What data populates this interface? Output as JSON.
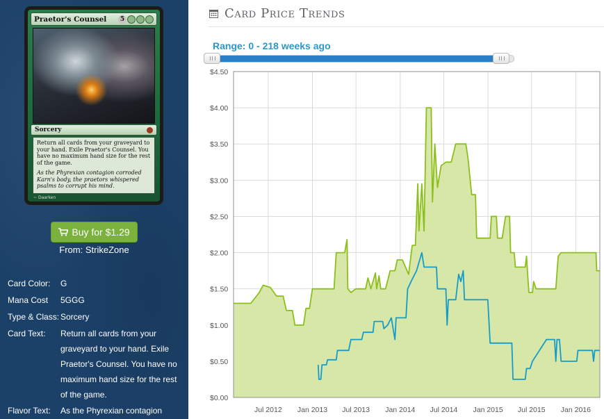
{
  "card": {
    "name": "Praetor's Counsel",
    "mana_cost_number": "5",
    "mana_symbols": [
      "G",
      "G",
      "G"
    ],
    "type_line": "Sorcery",
    "rules_text": "Return all cards from your graveyard to your hand. Exile Praetor's Counsel. You have no maximum hand size for the rest of the game.",
    "flavor_text": "As the Phyrexian contagion corroded Karn's body, the praetors whispered psalms to corrupt his mind.",
    "artist": "Daarken"
  },
  "buy": {
    "label": "Buy for $1.29",
    "from": "From: StrikeZone",
    "color": "#7bb13d"
  },
  "details": [
    {
      "label": "Card Color:",
      "value": "G"
    },
    {
      "label": "Mana Cost",
      "value": "5GGG"
    },
    {
      "label": "Type & Class:",
      "value": "Sorcery"
    },
    {
      "label": "Card Text:",
      "value": "Return all cards from your graveyard to your hand. Exile Praetor's Counsel. You have no maximum hand size for the rest of the game."
    },
    {
      "label": "Flavor Text:",
      "value": "As the Phyrexian contagion"
    }
  ],
  "panel": {
    "title": "Card Price Trends",
    "range_label": "Range: 0 - 218 weeks ago",
    "range_selected_fraction": 0.96
  },
  "colors": {
    "sidebar_bg": "#1c4169",
    "accent_blue": "#2e97c8",
    "series_green": "#8cbf1c",
    "series_green_fill": "#d5e6a3",
    "series_blue": "#169bc9"
  },
  "chart_data": {
    "type": "line",
    "title": "",
    "xlabel": "",
    "ylabel": "",
    "ylim": [
      0,
      4.5
    ],
    "y_ticks": [
      "$0.00",
      "$0.50",
      "$1.00",
      "$1.50",
      "$2.00",
      "$2.50",
      "$3.00",
      "$3.50",
      "$4.00",
      "$4.50"
    ],
    "x_tick_labels": [
      "Jul 2012",
      "Jan 2013",
      "Jul 2013",
      "Jan 2014",
      "Jul 2014",
      "Jan 2015",
      "Jul 2015",
      "Jan 2016"
    ],
    "x_ticks": [
      "2012-07-01",
      "2013-01-01",
      "2013-07-01",
      "2014-01-01",
      "2014-07-01",
      "2015-01-01",
      "2015-07-01",
      "2016-01-01"
    ],
    "xlim": [
      "2012-02-08",
      "2016-04-10"
    ],
    "grid": true,
    "legend": "none",
    "series": [
      {
        "color": "#8cbf1c",
        "fill": true,
        "points": [
          [
            "2012-02-08",
            1.3
          ],
          [
            "2012-04-20",
            1.3
          ],
          [
            "2012-05-25",
            1.45
          ],
          [
            "2012-06-10",
            1.55
          ],
          [
            "2012-07-10",
            1.52
          ],
          [
            "2012-08-05",
            1.4
          ],
          [
            "2012-09-01",
            1.4
          ],
          [
            "2012-09-15",
            1.2
          ],
          [
            "2012-10-10",
            1.2
          ],
          [
            "2012-10-20",
            1.0
          ],
          [
            "2012-11-25",
            1.0
          ],
          [
            "2012-12-05",
            1.23
          ],
          [
            "2012-12-20",
            1.23
          ],
          [
            "2013-01-01",
            1.5
          ],
          [
            "2013-04-01",
            1.5
          ],
          [
            "2013-04-10",
            2.0
          ],
          [
            "2013-05-15",
            2.0
          ],
          [
            "2013-05-25",
            2.18
          ],
          [
            "2013-05-28",
            1.5
          ],
          [
            "2013-06-10",
            1.45
          ],
          [
            "2013-07-01",
            1.5
          ],
          [
            "2013-08-10",
            1.5
          ],
          [
            "2013-08-20",
            1.65
          ],
          [
            "2013-09-01",
            1.5
          ],
          [
            "2013-09-20",
            1.72
          ],
          [
            "2013-09-25",
            1.5
          ],
          [
            "2013-10-05",
            1.68
          ],
          [
            "2013-10-12",
            1.5
          ],
          [
            "2013-11-01",
            1.5
          ],
          [
            "2013-11-20",
            1.75
          ],
          [
            "2013-12-10",
            1.75
          ],
          [
            "2013-12-20",
            1.9
          ],
          [
            "2014-01-10",
            1.9
          ],
          [
            "2014-02-05",
            1.7
          ],
          [
            "2014-02-20",
            2.1
          ],
          [
            "2014-03-05",
            2.1
          ],
          [
            "2014-03-15",
            2.95
          ],
          [
            "2014-03-20",
            2.3
          ],
          [
            "2014-04-01",
            2.95
          ],
          [
            "2014-04-10",
            2.3
          ],
          [
            "2014-04-20",
            4.0
          ],
          [
            "2014-05-10",
            4.0
          ],
          [
            "2014-05-15",
            2.7
          ],
          [
            "2014-05-25",
            3.5
          ],
          [
            "2014-06-05",
            2.9
          ],
          [
            "2014-06-20",
            3.2
          ],
          [
            "2014-07-10",
            3.25
          ],
          [
            "2014-08-01",
            3.25
          ],
          [
            "2014-08-20",
            3.5
          ],
          [
            "2014-10-01",
            3.5
          ],
          [
            "2014-10-10",
            3.3
          ],
          [
            "2014-10-25",
            2.8
          ],
          [
            "2014-11-10",
            2.8
          ],
          [
            "2014-11-15",
            2.2
          ],
          [
            "2015-01-10",
            2.2
          ],
          [
            "2015-01-15",
            2.5
          ],
          [
            "2015-02-05",
            2.5
          ],
          [
            "2015-02-10",
            2.2
          ],
          [
            "2015-03-01",
            2.2
          ],
          [
            "2015-03-15",
            2.5
          ],
          [
            "2015-04-01",
            2.5
          ],
          [
            "2015-04-05",
            2.0
          ],
          [
            "2015-04-20",
            2.0
          ],
          [
            "2015-04-25",
            1.8
          ],
          [
            "2015-06-05",
            1.8
          ],
          [
            "2015-06-10",
            1.95
          ],
          [
            "2015-06-20",
            1.45
          ],
          [
            "2015-07-05",
            1.45
          ],
          [
            "2015-07-10",
            1.6
          ],
          [
            "2015-07-20",
            1.5
          ],
          [
            "2015-10-10",
            1.5
          ],
          [
            "2015-10-20",
            1.95
          ],
          [
            "2015-11-01",
            2.0
          ],
          [
            "2016-03-25",
            2.0
          ],
          [
            "2016-03-28",
            1.75
          ],
          [
            "2016-04-10",
            1.75
          ]
        ]
      },
      {
        "color": "#169bc9",
        "fill": false,
        "points": [
          [
            "2013-01-25",
            0.45
          ],
          [
            "2013-01-28",
            0.25
          ],
          [
            "2013-02-05",
            0.25
          ],
          [
            "2013-02-10",
            0.45
          ],
          [
            "2013-02-28",
            0.45
          ],
          [
            "2013-03-05",
            0.52
          ],
          [
            "2013-04-10",
            0.52
          ],
          [
            "2013-04-15",
            0.65
          ],
          [
            "2013-06-01",
            0.65
          ],
          [
            "2013-06-10",
            0.8
          ],
          [
            "2013-07-25",
            0.8
          ],
          [
            "2013-08-01",
            0.9
          ],
          [
            "2013-09-10",
            0.9
          ],
          [
            "2013-09-15",
            1.05
          ],
          [
            "2013-10-20",
            1.05
          ],
          [
            "2013-10-25",
            0.95
          ],
          [
            "2013-11-10",
            1.0
          ],
          [
            "2013-11-25",
            1.1
          ],
          [
            "2013-12-10",
            0.8
          ],
          [
            "2013-12-15",
            1.1
          ],
          [
            "2014-01-25",
            1.1
          ],
          [
            "2014-02-01",
            1.5
          ],
          [
            "2014-02-15",
            1.6
          ],
          [
            "2014-03-10",
            1.75
          ],
          [
            "2014-04-01",
            2.0
          ],
          [
            "2014-04-10",
            1.8
          ],
          [
            "2014-06-01",
            1.8
          ],
          [
            "2014-06-05",
            1.5
          ],
          [
            "2014-07-10",
            1.5
          ],
          [
            "2014-07-15",
            1.0
          ],
          [
            "2014-07-20",
            1.35
          ],
          [
            "2014-08-20",
            1.35
          ],
          [
            "2014-09-01",
            1.7
          ],
          [
            "2014-09-10",
            1.6
          ],
          [
            "2014-09-20",
            1.75
          ],
          [
            "2014-09-25",
            1.35
          ],
          [
            "2014-12-31",
            1.35
          ],
          [
            "2015-01-10",
            0.75
          ],
          [
            "2015-04-10",
            0.75
          ],
          [
            "2015-04-15",
            0.25
          ],
          [
            "2015-06-05",
            0.25
          ],
          [
            "2015-06-10",
            0.4
          ],
          [
            "2015-06-25",
            0.4
          ],
          [
            "2015-07-05",
            0.5
          ],
          [
            "2015-09-01",
            0.8
          ],
          [
            "2015-10-05",
            0.8
          ],
          [
            "2015-10-10",
            0.5
          ],
          [
            "2015-10-15",
            0.8
          ],
          [
            "2015-10-25",
            0.8
          ],
          [
            "2015-11-01",
            0.5
          ],
          [
            "2016-01-05",
            0.5
          ],
          [
            "2016-01-10",
            0.65
          ],
          [
            "2016-03-10",
            0.65
          ],
          [
            "2016-03-15",
            0.5
          ],
          [
            "2016-03-20",
            0.65
          ],
          [
            "2016-04-10",
            0.65
          ]
        ]
      }
    ]
  }
}
